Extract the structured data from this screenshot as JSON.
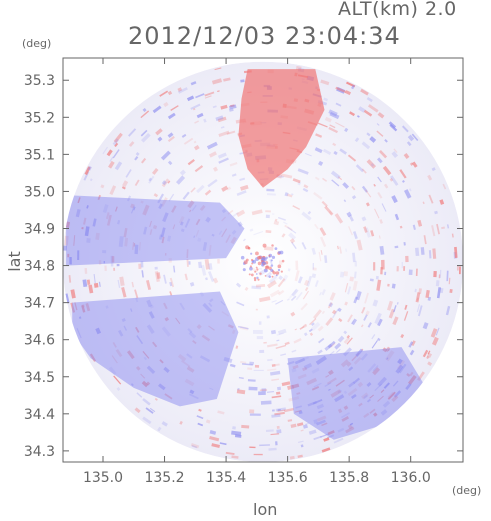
{
  "header": {
    "altitude_label": "ALT(km) 2.0",
    "timestamp": "2012/12/03 23:04:34"
  },
  "axes": {
    "y_unit": "(deg)",
    "x_unit": "(deg)",
    "y_label": "lat",
    "x_label": "lon"
  },
  "chart_data": {
    "type": "heatmap",
    "title": "2012/12/03 23:04:34",
    "subtitle": "ALT(km) 2.0",
    "xlabel": "lon",
    "ylabel": "lat",
    "xlim": [
      134.87,
      136.17
    ],
    "ylim": [
      34.27,
      35.36
    ],
    "x_ticks": [
      135.0,
      135.2,
      135.4,
      135.6,
      135.8,
      136.0
    ],
    "x_tick_labels": [
      "135.0",
      "135.2",
      "135.4",
      "135.6",
      "135.8",
      "136.0"
    ],
    "y_ticks": [
      34.3,
      34.4,
      34.5,
      34.6,
      34.7,
      34.8,
      34.9,
      35.0,
      35.1,
      35.2,
      35.3
    ],
    "y_tick_labels": [
      "34.3",
      "34.4",
      "34.5",
      "34.6",
      "34.7",
      "34.8",
      "34.9",
      "35.0",
      "35.1",
      "35.2",
      "35.3"
    ],
    "domain": {
      "center": [
        135.52,
        34.81
      ],
      "radius_lon": 0.66,
      "radius_lat": 0.54
    },
    "colors": {
      "positive": "#f07878",
      "negative": "#8c8cf0",
      "neutral": "#f4f4fb"
    },
    "regions": [
      {
        "polarity": "positive",
        "polygon": [
          [
            135.47,
            35.33
          ],
          [
            135.69,
            35.33
          ],
          [
            135.72,
            35.22
          ],
          [
            135.66,
            35.12
          ],
          [
            135.6,
            35.06
          ],
          [
            135.52,
            35.01
          ],
          [
            135.47,
            35.06
          ],
          [
            135.44,
            35.15
          ],
          [
            135.45,
            35.25
          ]
        ]
      },
      {
        "polarity": "negative",
        "polygon": [
          [
            134.9,
            34.7
          ],
          [
            135.38,
            34.73
          ],
          [
            135.44,
            34.62
          ],
          [
            135.37,
            34.44
          ],
          [
            135.25,
            34.42
          ],
          [
            135.1,
            34.47
          ],
          [
            134.96,
            34.55
          ],
          [
            134.9,
            34.62
          ]
        ]
      },
      {
        "polarity": "negative",
        "polygon": [
          [
            134.88,
            34.99
          ],
          [
            135.38,
            34.97
          ],
          [
            135.46,
            34.9
          ],
          [
            135.4,
            34.82
          ],
          [
            134.88,
            34.8
          ]
        ]
      },
      {
        "polarity": "negative",
        "polygon": [
          [
            135.6,
            34.55
          ],
          [
            135.97,
            34.58
          ],
          [
            136.05,
            34.47
          ],
          [
            135.95,
            34.38
          ],
          [
            135.75,
            34.33
          ],
          [
            135.62,
            34.4
          ]
        ]
      }
    ]
  }
}
